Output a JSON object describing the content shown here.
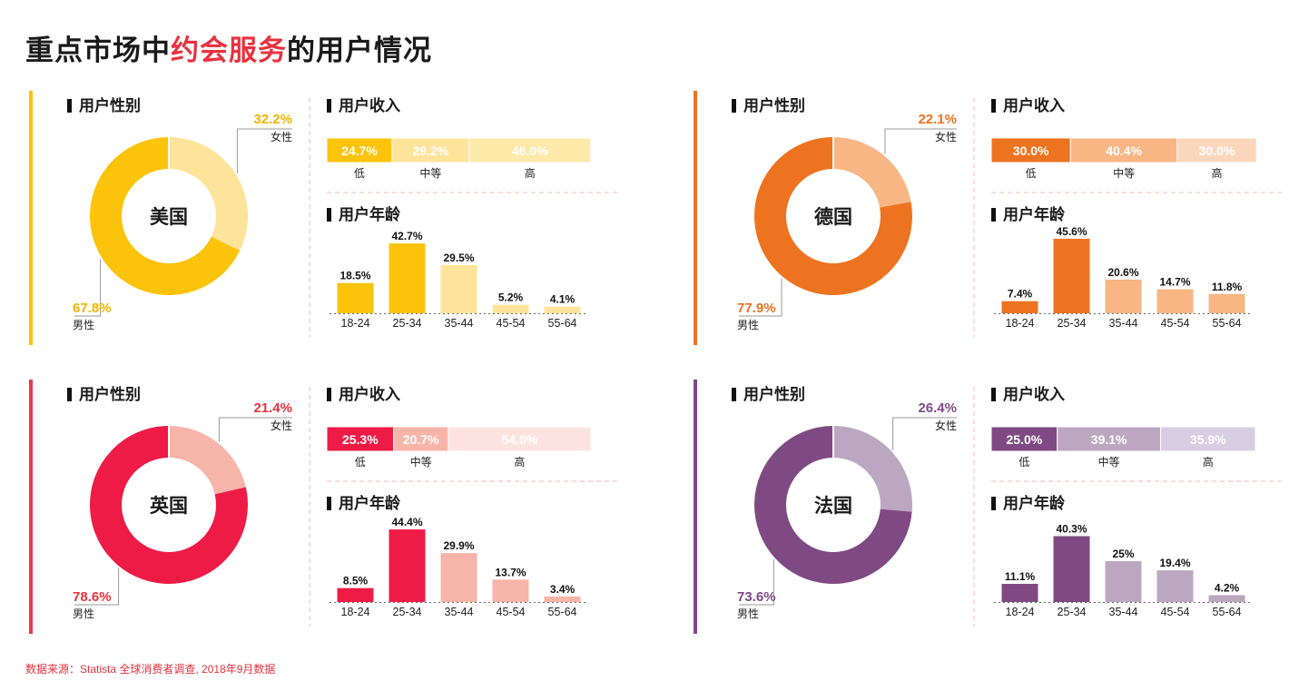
{
  "title": {
    "prefix": "重点市场中",
    "highlight": "约会服务",
    "suffix": "的用户情况"
  },
  "source": "数据来源：Statista 全球消费者调查, 2018年9月数据",
  "labels": {
    "gender": "用户性别",
    "income": "用户收入",
    "age": "用户年龄",
    "female": "女性",
    "male": "男性"
  },
  "panels": [
    {
      "country": "美国",
      "colors": {
        "main": "#fcc30b",
        "light": "#fde49a",
        "lighter": "#fde9a8",
        "text": "#f5b400",
        "vbar": "#fcc30b"
      }
    },
    {
      "country": "德国",
      "colors": {
        "main": "#ee7320",
        "light": "#f7b683",
        "lighter": "#fad7bc",
        "text": "#ee7320",
        "vbar": "#ee7320"
      }
    },
    {
      "country": "英国",
      "colors": {
        "main": "#ee1b46",
        "light": "#f7b4a9",
        "lighter": "#fde3e0",
        "text": "#e8323f",
        "vbar": "#e8394d"
      }
    },
    {
      "country": "法国",
      "colors": {
        "main": "#7f4a83",
        "light": "#bca7c1",
        "lighter": "#d8cde2",
        "text": "#7f4a83",
        "vbar": "#7f4a83"
      }
    }
  ],
  "chart_data": [
    {
      "type": "pie",
      "country": "美国",
      "title": "用户性别",
      "categories": [
        "女性",
        "男性"
      ],
      "values": [
        32.2,
        67.8
      ],
      "value_labels": [
        "32.2%",
        "67.8%"
      ]
    },
    {
      "type": "bar",
      "orientation": "horizontal-stacked",
      "country": "美国",
      "title": "用户收入",
      "categories": [
        "低",
        "中等",
        "高"
      ],
      "values": [
        24.7,
        29.2,
        46.0
      ],
      "value_labels": [
        "24.7%",
        "29.2%",
        "46.0%"
      ]
    },
    {
      "type": "bar",
      "country": "美国",
      "title": "用户年龄",
      "categories": [
        "18-24",
        "25-34",
        "35-44",
        "45-54",
        "55-64"
      ],
      "values": [
        18.5,
        42.7,
        29.5,
        5.2,
        4.1
      ],
      "value_labels": [
        "18.5%",
        "42.7%",
        "29.5%",
        "5.2%",
        "4.1%"
      ]
    },
    {
      "type": "pie",
      "country": "德国",
      "title": "用户性别",
      "categories": [
        "女性",
        "男性"
      ],
      "values": [
        22.1,
        77.9
      ],
      "value_labels": [
        "22.1%",
        "77.9%"
      ]
    },
    {
      "type": "bar",
      "orientation": "horizontal-stacked",
      "country": "德国",
      "title": "用户收入",
      "categories": [
        "低",
        "中等",
        "高"
      ],
      "values": [
        30.0,
        40.4,
        30.0
      ],
      "value_labels": [
        "30.0%",
        "40.4%",
        "30.0%"
      ]
    },
    {
      "type": "bar",
      "country": "德国",
      "title": "用户年龄",
      "categories": [
        "18-24",
        "25-34",
        "35-44",
        "45-54",
        "55-64"
      ],
      "values": [
        7.4,
        45.6,
        20.6,
        14.7,
        11.8
      ],
      "value_labels": [
        "7.4%",
        "45.6%",
        "20.6%",
        "14.7%",
        "11.8%"
      ]
    },
    {
      "type": "pie",
      "country": "英国",
      "title": "用户性别",
      "categories": [
        "女性",
        "男性"
      ],
      "values": [
        21.4,
        78.6
      ],
      "value_labels": [
        "21.4%",
        "78.6%"
      ]
    },
    {
      "type": "bar",
      "orientation": "horizontal-stacked",
      "country": "英国",
      "title": "用户收入",
      "categories": [
        "低",
        "中等",
        "高"
      ],
      "values": [
        25.3,
        20.7,
        54.0
      ],
      "value_labels": [
        "25.3%",
        "20.7%",
        "54.0%"
      ]
    },
    {
      "type": "bar",
      "country": "英国",
      "title": "用户年龄",
      "categories": [
        "18-24",
        "25-34",
        "35-44",
        "45-54",
        "55-64"
      ],
      "values": [
        8.5,
        44.4,
        29.9,
        13.7,
        3.4
      ],
      "value_labels": [
        "8.5%",
        "44.4%",
        "29.9%",
        "13.7%",
        "3.4%"
      ]
    },
    {
      "type": "pie",
      "country": "法国",
      "title": "用户性别",
      "categories": [
        "女性",
        "男性"
      ],
      "values": [
        26.4,
        73.6
      ],
      "value_labels": [
        "26.4%",
        "73.6%"
      ]
    },
    {
      "type": "bar",
      "orientation": "horizontal-stacked",
      "country": "法国",
      "title": "用户收入",
      "categories": [
        "低",
        "中等",
        "高"
      ],
      "values": [
        25.0,
        39.1,
        35.9
      ],
      "value_labels": [
        "25.0%",
        "39.1%",
        "35.9%"
      ]
    },
    {
      "type": "bar",
      "country": "法国",
      "title": "用户年龄",
      "categories": [
        "18-24",
        "25-34",
        "35-44",
        "45-54",
        "55-64"
      ],
      "values": [
        11.1,
        40.3,
        25,
        19.4,
        4.2
      ],
      "value_labels": [
        "11.1%",
        "40.3%",
        "25%",
        "19.4%",
        "4.2%"
      ]
    }
  ]
}
